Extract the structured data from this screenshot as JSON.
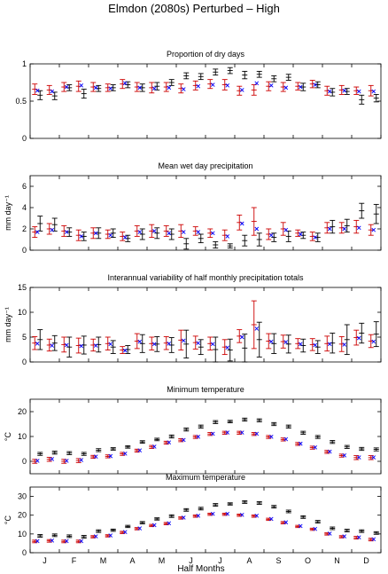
{
  "figure": {
    "title": "Elmdon (2080s) Perturbed – High",
    "xlabel": "Half Months",
    "month_labels": [
      "J",
      "F",
      "M",
      "A",
      "M",
      "J",
      "J",
      "A",
      "S",
      "O",
      "N",
      "D"
    ]
  },
  "colors": {
    "observed": "#000000",
    "model": "#cc0000",
    "mean_marker": "#0000ff"
  },
  "chart_data": [
    {
      "type": "scatter",
      "title": "Proportion of dry days",
      "ylabel": "",
      "ylim": [
        0,
        1
      ],
      "yticks": [
        "0",
        "0.5",
        "1"
      ],
      "x": [
        1,
        2,
        3,
        4,
        5,
        6,
        7,
        8,
        9,
        10,
        11,
        12,
        13,
        14,
        15,
        16,
        17,
        18,
        19,
        20,
        21,
        22,
        23,
        24
      ],
      "series": [
        {
          "values": [
            0.58,
            0.57,
            0.68,
            0.6,
            0.67,
            0.68,
            0.72,
            0.68,
            0.7,
            0.75,
            0.84,
            0.83,
            0.89,
            0.91,
            0.85,
            0.86,
            0.8,
            0.82,
            0.69,
            0.72,
            0.62,
            0.63,
            0.52,
            0.54
          ],
          "err": [
            0.06,
            0.05,
            0.04,
            0.06,
            0.04,
            0.04,
            0.04,
            0.05,
            0.05,
            0.04,
            0.04,
            0.04,
            0.04,
            0.04,
            0.05,
            0.04,
            0.04,
            0.04,
            0.05,
            0.04,
            0.05,
            0.04,
            0.06,
            0.05
          ]
        },
        {
          "values": [
            0.66,
            0.65,
            0.69,
            0.7,
            0.69,
            0.68,
            0.73,
            0.69,
            0.68,
            0.69,
            0.67,
            0.71,
            0.73,
            0.72,
            0.64,
            0.65,
            0.7,
            0.69,
            0.7,
            0.73,
            0.64,
            0.65,
            0.64,
            0.64
          ],
          "err": [
            0.07,
            0.06,
            0.06,
            0.07,
            0.06,
            0.05,
            0.06,
            0.06,
            0.07,
            0.06,
            0.06,
            0.06,
            0.06,
            0.07,
            0.06,
            0.07,
            0.06,
            0.06,
            0.05,
            0.05,
            0.06,
            0.06,
            0.05,
            0.07
          ]
        },
        {
          "values": [
            0.64,
            0.63,
            0.69,
            0.71,
            0.68,
            0.67,
            0.74,
            0.68,
            0.67,
            0.68,
            0.66,
            0.7,
            0.72,
            0.71,
            0.65,
            0.74,
            0.71,
            0.68,
            0.69,
            0.72,
            0.63,
            0.64,
            0.63,
            0.63
          ]
        }
      ]
    },
    {
      "type": "scatter",
      "title": "Mean wet day precipitation",
      "ylabel": "mm day⁻¹",
      "ylim": [
        0,
        7
      ],
      "yticks": [
        "0",
        "2",
        "4",
        "6"
      ],
      "x": [
        1,
        2,
        3,
        4,
        5,
        6,
        7,
        8,
        9,
        10,
        11,
        12,
        13,
        14,
        15,
        16,
        17,
        18,
        19,
        20,
        21,
        22,
        23,
        24
      ],
      "series": [
        {
          "values": [
            2.5,
            2.4,
            1.7,
            1.3,
            1.6,
            1.6,
            1.1,
            1.5,
            1.6,
            1.5,
            0.6,
            1.1,
            0.5,
            0.4,
            0.9,
            1.0,
            1.2,
            1.3,
            1.4,
            1.2,
            2.2,
            2.3,
            3.7,
            3.4
          ],
          "err": [
            0.7,
            0.6,
            0.4,
            0.4,
            0.5,
            0.4,
            0.3,
            0.5,
            0.5,
            0.5,
            0.5,
            0.4,
            0.3,
            0.2,
            0.5,
            0.6,
            0.4,
            0.5,
            0.3,
            0.4,
            0.6,
            0.6,
            0.7,
            0.9
          ]
        },
        {
          "values": [
            1.7,
            2.0,
            1.8,
            1.4,
            1.6,
            1.5,
            1.3,
            1.8,
            1.8,
            1.8,
            1.8,
            1.8,
            1.6,
            1.4,
            2.6,
            2.7,
            1.5,
            2.0,
            1.6,
            1.3,
            2.1,
            2.1,
            2.2,
            1.9
          ],
          "err": [
            0.5,
            0.5,
            0.5,
            0.5,
            0.5,
            0.4,
            0.4,
            0.5,
            0.6,
            0.5,
            0.6,
            0.4,
            0.4,
            0.5,
            0.7,
            1.3,
            0.5,
            0.6,
            0.3,
            0.4,
            0.5,
            0.5,
            0.6,
            0.5
          ]
        },
        {
          "values": [
            1.7,
            1.9,
            1.7,
            1.3,
            1.6,
            1.4,
            1.2,
            1.7,
            1.8,
            1.6,
            1.7,
            1.7,
            1.6,
            1.3,
            2.5,
            2.0,
            1.4,
            1.9,
            1.5,
            1.2,
            2.0,
            2.0,
            2.1,
            1.9
          ]
        }
      ]
    },
    {
      "type": "scatter",
      "title": "Interannual variability of half monthly precipitation totals",
      "ylabel": "mm day⁻¹",
      "ylim": [
        0,
        15
      ],
      "yticks": [
        "0",
        "5",
        "10",
        "15"
      ],
      "x": [
        1,
        2,
        3,
        4,
        5,
        6,
        7,
        8,
        9,
        10,
        11,
        12,
        13,
        14,
        15,
        16,
        17,
        18,
        19,
        20,
        21,
        22,
        23,
        24
      ],
      "series": [
        {
          "values": [
            4.5,
            3.8,
            3.0,
            3.4,
            3.5,
            3.0,
            2.5,
            3.7,
            3.6,
            3.4,
            3.6,
            3.0,
            2.5,
            2.4,
            2.8,
            4.5,
            3.7,
            3.6,
            3.3,
            3.0,
            3.8,
            4.5,
            5.8,
            5.6
          ],
          "err": [
            2.0,
            1.5,
            2.0,
            1.8,
            1.5,
            1.3,
            0.8,
            1.8,
            1.5,
            1.5,
            2.8,
            1.5,
            2.5,
            2.2,
            2.8,
            3.5,
            2.0,
            1.8,
            1.3,
            1.3,
            2.0,
            3.0,
            2.0,
            2.5
          ]
        },
        {
          "values": [
            3.8,
            3.4,
            3.5,
            3.3,
            3.4,
            3.7,
            2.4,
            4.2,
            3.7,
            3.8,
            4.4,
            3.9,
            3.7,
            3.0,
            5.2,
            7.5,
            4.2,
            4.1,
            3.7,
            3.5,
            3.7,
            3.6,
            4.9,
            4.2
          ],
          "err": [
            1.3,
            1.2,
            1.5,
            1.5,
            1.2,
            1.3,
            0.7,
            1.5,
            1.3,
            1.3,
            2.0,
            1.3,
            1.3,
            1.5,
            1.3,
            4.8,
            1.5,
            1.3,
            1.0,
            1.2,
            1.5,
            1.5,
            1.5,
            1.3
          ]
        },
        {
          "values": [
            3.7,
            3.3,
            3.4,
            3.2,
            3.3,
            3.6,
            2.3,
            4.1,
            3.6,
            3.7,
            4.3,
            3.8,
            3.6,
            2.9,
            5.0,
            6.7,
            4.1,
            4.0,
            3.6,
            3.4,
            3.6,
            3.5,
            4.8,
            4.1
          ]
        }
      ]
    },
    {
      "type": "scatter",
      "title": "Minimum temperature",
      "ylabel": "°C",
      "ylim": [
        -5,
        25
      ],
      "yticks": [
        "0",
        "10",
        "20"
      ],
      "x": [
        1,
        2,
        3,
        4,
        5,
        6,
        7,
        8,
        9,
        10,
        11,
        12,
        13,
        14,
        15,
        16,
        17,
        18,
        19,
        20,
        21,
        22,
        23,
        24
      ],
      "series": [
        {
          "values": [
            3.0,
            3.5,
            3.3,
            3.0,
            4.5,
            5.0,
            5.8,
            7.8,
            8.8,
            10.0,
            12.8,
            14.0,
            15.8,
            16.0,
            16.8,
            16.5,
            15.0,
            14.0,
            11.5,
            9.8,
            7.8,
            5.8,
            5.0,
            4.8
          ],
          "err": [
            0.6,
            0.6,
            0.6,
            0.6,
            0.6,
            0.5,
            0.5,
            0.5,
            0.5,
            0.6,
            0.6,
            0.6,
            0.6,
            0.5,
            0.6,
            0.6,
            0.6,
            0.6,
            0.6,
            0.6,
            0.6,
            0.6,
            0.6,
            0.6
          ]
        },
        {
          "values": [
            0.0,
            0.8,
            0.0,
            0.3,
            1.8,
            2.0,
            3.0,
            4.3,
            5.8,
            7.5,
            8.5,
            9.8,
            11.0,
            11.5,
            11.5,
            11.0,
            9.8,
            8.8,
            7.0,
            5.5,
            3.8,
            2.3,
            1.5,
            1.5
          ],
          "err": [
            0.8,
            0.8,
            0.8,
            0.8,
            0.6,
            0.6,
            0.6,
            0.6,
            0.6,
            0.6,
            0.6,
            0.6,
            0.6,
            0.6,
            0.6,
            0.6,
            0.6,
            0.6,
            0.6,
            0.6,
            0.6,
            0.6,
            0.8,
            0.8
          ]
        },
        {
          "values": [
            0.2,
            0.9,
            0.2,
            0.5,
            1.9,
            2.1,
            3.1,
            4.4,
            5.9,
            7.6,
            8.6,
            9.9,
            11.1,
            11.6,
            11.6,
            11.1,
            9.9,
            8.9,
            7.1,
            5.6,
            3.9,
            2.4,
            1.6,
            1.6
          ]
        }
      ]
    },
    {
      "type": "scatter",
      "title": "Maximum temperature",
      "ylabel": "°C",
      "ylim": [
        0,
        35
      ],
      "yticks": [
        "0",
        "10",
        "20",
        "30"
      ],
      "x": [
        1,
        2,
        3,
        4,
        5,
        6,
        7,
        8,
        9,
        10,
        11,
        12,
        13,
        14,
        15,
        16,
        17,
        18,
        19,
        20,
        21,
        22,
        23,
        24
      ],
      "series": [
        {
          "values": [
            9.0,
            9.3,
            8.8,
            8.5,
            11.5,
            12.0,
            14.0,
            16.0,
            18.0,
            19.5,
            22.8,
            23.5,
            25.5,
            26.0,
            27.0,
            26.5,
            24.5,
            22.0,
            19.0,
            16.5,
            13.0,
            11.8,
            11.5,
            10.5
          ],
          "err": [
            0.7,
            0.7,
            0.7,
            0.7,
            0.7,
            0.6,
            0.6,
            0.6,
            0.6,
            0.7,
            0.7,
            0.7,
            0.7,
            0.6,
            0.7,
            0.7,
            0.7,
            0.7,
            0.7,
            0.7,
            0.7,
            0.7,
            0.7,
            0.7
          ]
        },
        {
          "values": [
            6.0,
            6.3,
            6.0,
            6.0,
            8.5,
            9.0,
            10.8,
            12.8,
            14.5,
            15.5,
            18.5,
            19.5,
            20.5,
            20.5,
            20.0,
            19.5,
            17.8,
            16.0,
            14.0,
            12.5,
            10.0,
            8.5,
            8.0,
            7.0
          ],
          "err": [
            0.7,
            0.7,
            0.7,
            0.7,
            0.6,
            0.6,
            0.6,
            0.6,
            0.6,
            0.6,
            0.6,
            0.6,
            0.6,
            0.6,
            0.6,
            0.6,
            0.6,
            0.6,
            0.6,
            0.6,
            0.6,
            0.6,
            0.7,
            0.7
          ]
        },
        {
          "values": [
            6.2,
            6.5,
            6.2,
            6.2,
            8.7,
            9.2,
            11.0,
            13.0,
            14.7,
            15.7,
            18.7,
            19.7,
            20.7,
            20.7,
            20.2,
            19.7,
            18.0,
            16.2,
            14.2,
            12.7,
            10.2,
            8.7,
            8.2,
            7.2
          ]
        }
      ]
    }
  ]
}
